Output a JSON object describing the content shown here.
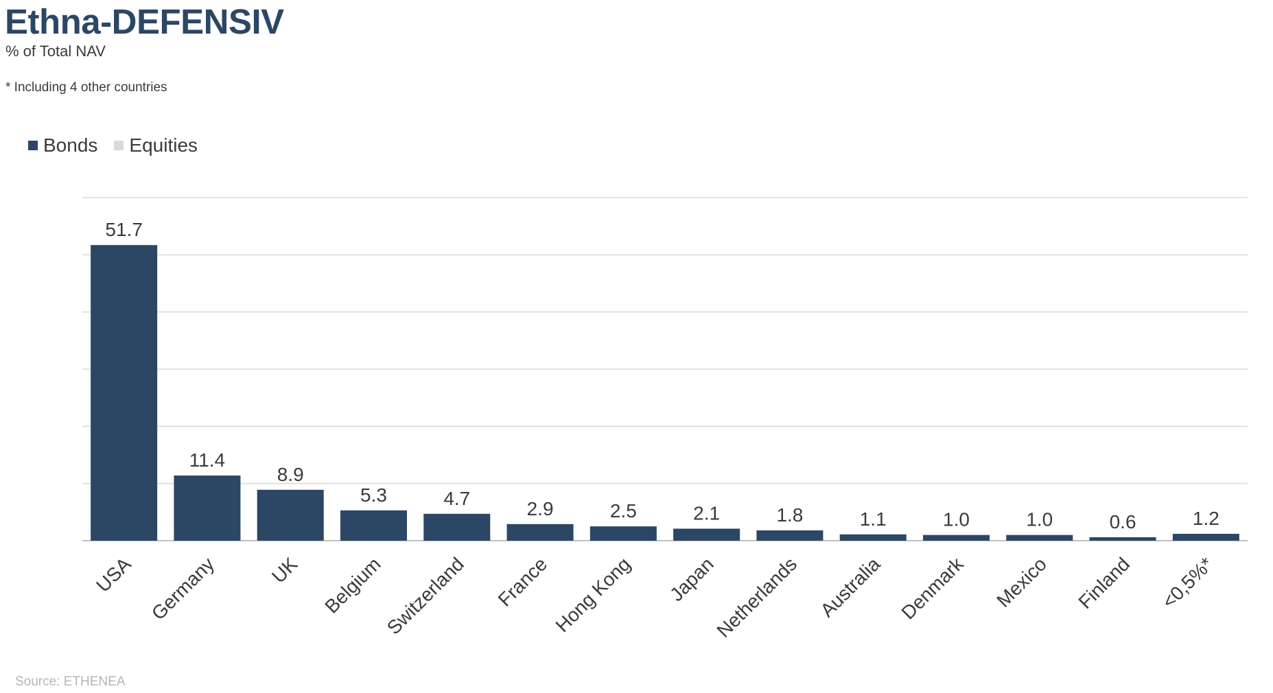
{
  "header": {
    "title": "Ethna-DEFENSIV",
    "subtitle": "% of Total NAV",
    "footnote": "* Including 4 other countries"
  },
  "legend": [
    {
      "label": "Bonds",
      "color": "#2c4766"
    },
    {
      "label": "Equities",
      "color": "#d9d9d9"
    }
  ],
  "source": "Source: ETHENEA",
  "chart_data": {
    "type": "bar",
    "categories": [
      "USA",
      "Germany",
      "UK",
      "Belgium",
      "Switzerland",
      "France",
      "Hong Kong",
      "Japan",
      "Netherlands",
      "Australia",
      "Denmark",
      "Mexico",
      "Finland",
      "<0,5%*"
    ],
    "series": [
      {
        "name": "Bonds",
        "color": "#2c4766",
        "values": [
          51.7,
          11.4,
          8.9,
          5.3,
          4.7,
          2.9,
          2.5,
          2.1,
          1.8,
          1.1,
          1.0,
          1.0,
          0.6,
          1.2
        ]
      },
      {
        "name": "Equities",
        "color": "#d9d9d9",
        "values": [
          0,
          0,
          0,
          0,
          0,
          0,
          0,
          0,
          0,
          0,
          0,
          0,
          0,
          0
        ]
      }
    ],
    "data_labels": [
      "51.7",
      "11.4",
      "8.9",
      "5.3",
      "4.7",
      "2.9",
      "2.5",
      "2.1",
      "1.8",
      "1.1",
      "1.0",
      "1.0",
      "0.6",
      "1.2"
    ],
    "ylim": [
      0,
      60
    ],
    "ytick_step": 10,
    "grid": true,
    "legend_position": "top-left",
    "xlabel": "",
    "ylabel": ""
  }
}
